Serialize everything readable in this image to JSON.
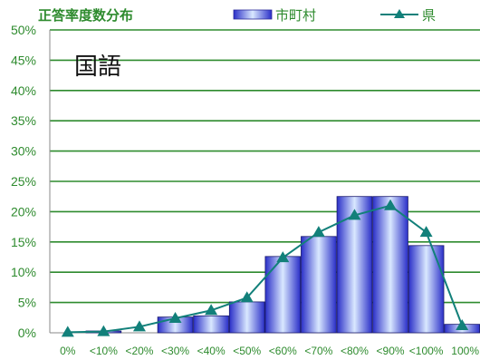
{
  "chart_data": {
    "type": "bar",
    "title": "正答率度数分布",
    "annotation": "国語",
    "categories": [
      "0%",
      "<10%",
      "<20%",
      "<30%",
      "<40%",
      "<50%",
      "<60%",
      "<70%",
      "<80%",
      "<90%",
      "<100%",
      "100%"
    ],
    "ylim": [
      0,
      50
    ],
    "y_ticks": [
      "0%",
      "5%",
      "10%",
      "15%",
      "20%",
      "25%",
      "30%",
      "35%",
      "40%",
      "45%",
      "50%"
    ],
    "grid": true,
    "legend_position": "top",
    "series": [
      {
        "name": "市町村",
        "kind": "bar",
        "values": [
          0,
          0.3,
          0,
          2.6,
          2.8,
          5.1,
          12.6,
          15.9,
          22.5,
          22.5,
          14.4,
          1.4
        ]
      },
      {
        "name": "県",
        "kind": "line",
        "values": [
          0.1,
          0.2,
          1.0,
          2.4,
          3.7,
          5.8,
          12.4,
          16.6,
          19.4,
          21.0,
          16.6,
          1.2
        ]
      }
    ],
    "colors": {
      "title": "#2e8b2e",
      "gridline": "#2e8b2e",
      "bar_fill_edge": "#2b33d6",
      "bar_fill_center": "#dcecff",
      "line": "#12807a"
    }
  }
}
